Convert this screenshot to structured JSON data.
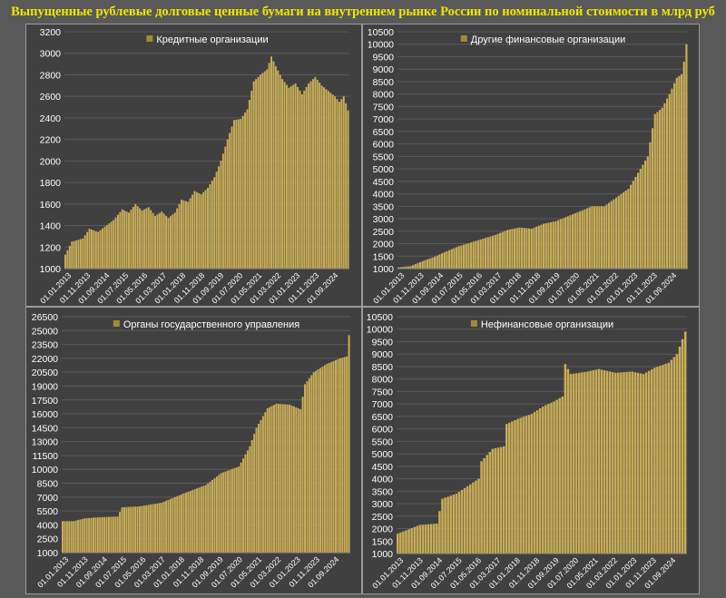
{
  "page_title": "Выпущенные рублевые долговые ценные бумаги на внутреннем рынке России по номинальной стоимости в млрд руб",
  "x_categories": [
    "01.01.2013",
    "01.11.2013",
    "01.09.2014",
    "01.07.2015",
    "01.05.2016",
    "01.03.2017",
    "01.01.2018",
    "01.11.2018",
    "01.09.2019",
    "01.07.2020",
    "01.05.2021",
    "01.03.2022",
    "01.01.2023",
    "01.11.2023",
    "01.09.2024"
  ],
  "colors": {
    "bar": "#c8ad57",
    "legend_swatch": "#a08a3c",
    "axis_text": "#ffffff",
    "grid": "#5a5a5a",
    "title": "#f2e600"
  },
  "chart_data": [
    {
      "type": "bar",
      "legend": "Кредитные организации",
      "legend_position": "top-center",
      "grid": true,
      "ylim": [
        1000,
        3200
      ],
      "ystep": 200,
      "y_ticks": [
        "1000",
        "1200",
        "1400",
        "1600",
        "1800",
        "2000",
        "2200",
        "2400",
        "2600",
        "2800",
        "3000",
        "3200"
      ],
      "series_keypoints": [
        [
          0,
          1130
        ],
        [
          3,
          1250
        ],
        [
          8,
          1280
        ],
        [
          11,
          1370
        ],
        [
          15,
          1340
        ],
        [
          18,
          1390
        ],
        [
          22,
          1450
        ],
        [
          26,
          1550
        ],
        [
          29,
          1520
        ],
        [
          32,
          1600
        ],
        [
          35,
          1540
        ],
        [
          38,
          1570
        ],
        [
          41,
          1490
        ],
        [
          44,
          1530
        ],
        [
          47,
          1470
        ],
        [
          50,
          1520
        ],
        [
          53,
          1640
        ],
        [
          56,
          1620
        ],
        [
          59,
          1720
        ],
        [
          62,
          1690
        ],
        [
          65,
          1750
        ],
        [
          68,
          1850
        ],
        [
          71,
          2000
        ],
        [
          74,
          2200
        ],
        [
          77,
          2380
        ],
        [
          80,
          2390
        ],
        [
          83,
          2480
        ],
        [
          86,
          2740
        ],
        [
          89,
          2800
        ],
        [
          92,
          2850
        ],
        [
          94,
          2970
        ],
        [
          96,
          2880
        ],
        [
          99,
          2760
        ],
        [
          102,
          2680
        ],
        [
          105,
          2720
        ],
        [
          108,
          2620
        ],
        [
          111,
          2720
        ],
        [
          114,
          2780
        ],
        [
          117,
          2700
        ],
        [
          120,
          2650
        ],
        [
          123,
          2600
        ],
        [
          125,
          2550
        ],
        [
          127,
          2600
        ],
        [
          129,
          2470
        ]
      ]
    },
    {
      "type": "bar",
      "legend": "Другие финансовые организации",
      "legend_position": "top-center",
      "grid": true,
      "ylim": [
        1000,
        10500
      ],
      "ystep": 500,
      "y_ticks": [
        "1000",
        "1500",
        "2000",
        "2500",
        "3000",
        "3500",
        "4000",
        "4500",
        "5000",
        "5500",
        "6000",
        "6500",
        "7000",
        "7500",
        "8000",
        "8500",
        "9000",
        "9500",
        "10000",
        "10500"
      ],
      "series_keypoints": [
        [
          0,
          1050
        ],
        [
          5,
          1100
        ],
        [
          10,
          1300
        ],
        [
          15,
          1480
        ],
        [
          20,
          1700
        ],
        [
          25,
          1900
        ],
        [
          30,
          2050
        ],
        [
          35,
          2200
        ],
        [
          40,
          2350
        ],
        [
          45,
          2550
        ],
        [
          50,
          2650
        ],
        [
          55,
          2600
        ],
        [
          60,
          2800
        ],
        [
          65,
          2900
        ],
        [
          70,
          3100
        ],
        [
          75,
          3300
        ],
        [
          80,
          3500
        ],
        [
          85,
          3500
        ],
        [
          90,
          3850
        ],
        [
          95,
          4200
        ],
        [
          100,
          5000
        ],
        [
          103,
          5500
        ],
        [
          106,
          7200
        ],
        [
          109,
          7450
        ],
        [
          112,
          8000
        ],
        [
          115,
          8650
        ],
        [
          117,
          8800
        ],
        [
          118,
          9300
        ],
        [
          119,
          10000
        ]
      ]
    },
    {
      "type": "bar",
      "legend": "Органы государственного управления",
      "legend_position": "top-center",
      "grid": true,
      "ylim": [
        1000,
        26500
      ],
      "ystep": 1500,
      "y_ticks": [
        "1000",
        "2500",
        "4000",
        "5500",
        "7000",
        "8500",
        "10000",
        "11500",
        "13000",
        "14500",
        "16000",
        "17500",
        "19000",
        "20500",
        "22000",
        "23500",
        "25000",
        "26500"
      ],
      "series_keypoints": [
        [
          0,
          4400
        ],
        [
          5,
          4400
        ],
        [
          10,
          4700
        ],
        [
          15,
          4800
        ],
        [
          20,
          4850
        ],
        [
          25,
          4900
        ],
        [
          27,
          5900
        ],
        [
          35,
          6000
        ],
        [
          45,
          6400
        ],
        [
          55,
          7400
        ],
        [
          65,
          8300
        ],
        [
          72,
          9600
        ],
        [
          80,
          10300
        ],
        [
          85,
          12500
        ],
        [
          88,
          14500
        ],
        [
          93,
          16600
        ],
        [
          97,
          17100
        ],
        [
          103,
          17000
        ],
        [
          108,
          16500
        ],
        [
          110,
          19200
        ],
        [
          114,
          20500
        ],
        [
          120,
          21400
        ],
        [
          126,
          22000
        ],
        [
          129,
          22200
        ],
        [
          130,
          24500
        ]
      ]
    },
    {
      "type": "bar",
      "legend": "Нефинансовые организации",
      "legend_position": "top-center",
      "grid": true,
      "ylim": [
        1000,
        10500
      ],
      "ystep": 500,
      "y_ticks": [
        "1000",
        "1500",
        "2000",
        "2500",
        "3000",
        "3500",
        "4000",
        "4500",
        "5000",
        "5500",
        "6000",
        "6500",
        "7000",
        "7500",
        "8000",
        "8500",
        "9000",
        "9500",
        "10000",
        "10500"
      ],
      "series_keypoints": [
        [
          0,
          1800
        ],
        [
          8,
          2150
        ],
        [
          14,
          2200
        ],
        [
          16,
          3200
        ],
        [
          21,
          3400
        ],
        [
          25,
          3700
        ],
        [
          29,
          4000
        ],
        [
          30,
          4700
        ],
        [
          34,
          5200
        ],
        [
          38,
          5300
        ],
        [
          39,
          6200
        ],
        [
          43,
          6400
        ],
        [
          48,
          6600
        ],
        [
          52,
          6900
        ],
        [
          56,
          7100
        ],
        [
          59,
          7300
        ],
        [
          60,
          8600
        ],
        [
          62,
          8200
        ],
        [
          68,
          8300
        ],
        [
          72,
          8400
        ],
        [
          78,
          8250
        ],
        [
          84,
          8300
        ],
        [
          88,
          8200
        ],
        [
          92,
          8450
        ],
        [
          97,
          8650
        ],
        [
          100,
          9000
        ],
        [
          102,
          9600
        ],
        [
          103,
          9900
        ]
      ]
    }
  ]
}
